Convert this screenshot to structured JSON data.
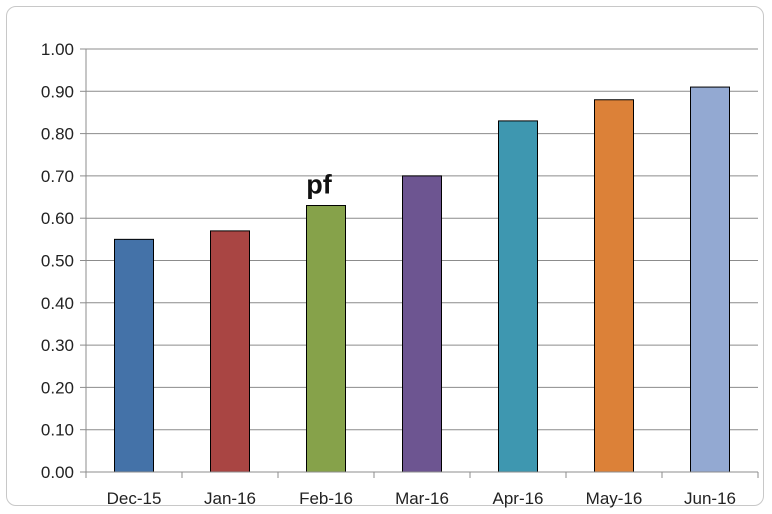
{
  "chart_data": {
    "type": "bar",
    "categories": [
      "Dec-15",
      "Jan-16",
      "Feb-16",
      "Mar-16",
      "Apr-16",
      "May-16",
      "Jun-16"
    ],
    "values": [
      0.55,
      0.57,
      0.63,
      0.7,
      0.83,
      0.88,
      0.91
    ],
    "colors": [
      "#4472a8",
      "#a94543",
      "#86a24a",
      "#6d5591",
      "#3e97b0",
      "#dc8138",
      "#93a9d2"
    ],
    "title": "",
    "xlabel": "",
    "ylabel": "",
    "ylim": [
      0,
      1.0
    ],
    "yticks": [
      "0.00",
      "0.10",
      "0.20",
      "0.30",
      "0.40",
      "0.50",
      "0.60",
      "0.70",
      "0.80",
      "0.90",
      "1.00"
    ],
    "grid": true,
    "legend": "none",
    "annotations": [
      {
        "text": "pf",
        "category": "Feb-16"
      }
    ]
  }
}
